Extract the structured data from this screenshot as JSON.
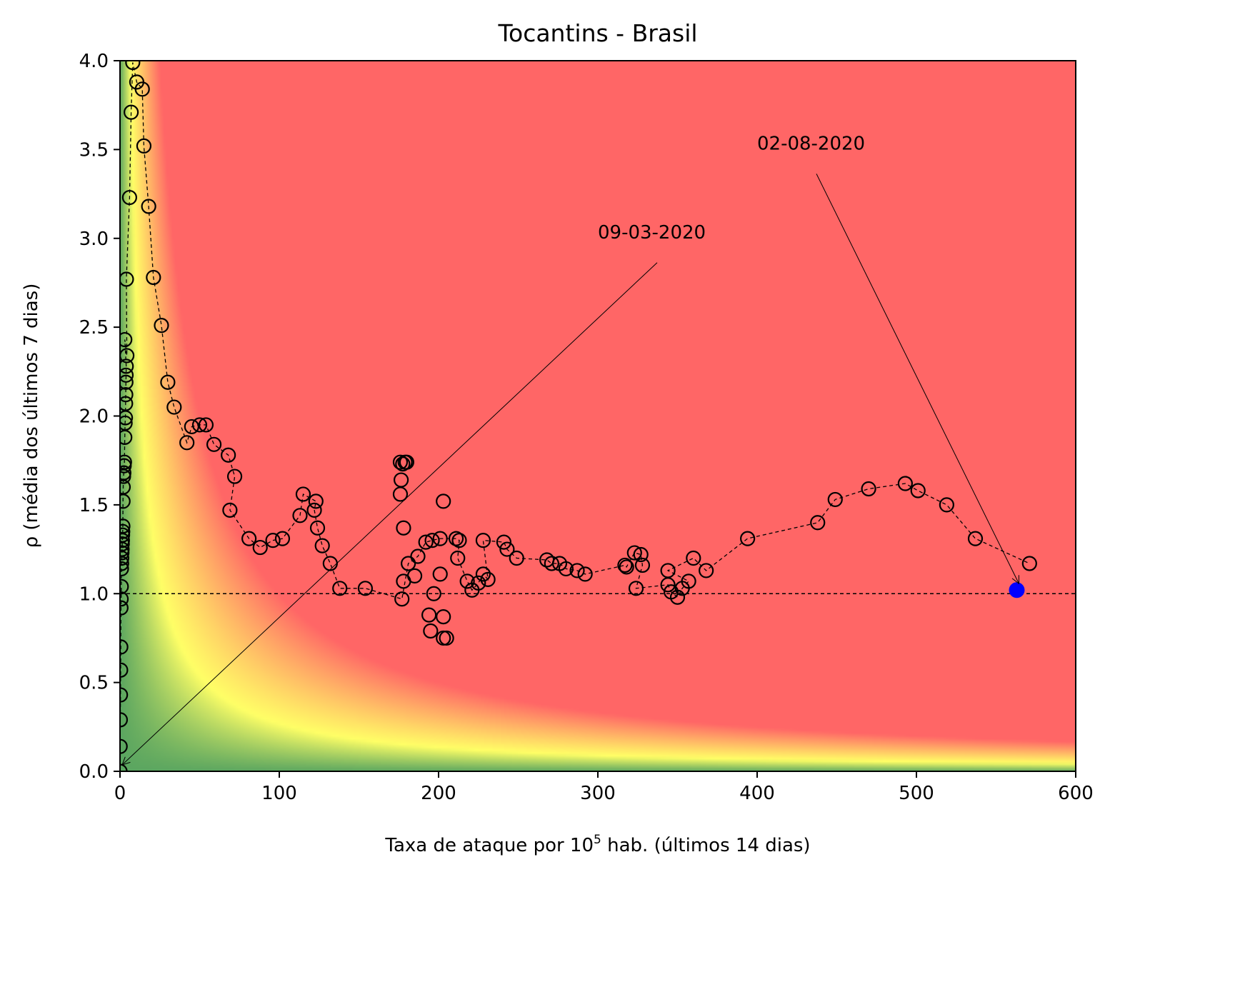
{
  "chart_data": {
    "type": "scatter",
    "title": "Tocantins - Brasil",
    "xlabel_prefix": "Taxa de ataque por 10",
    "xlabel_sup": "5",
    "xlabel_suffix": " hab. (últimos 14 dias)",
    "ylabel": "ρ (média dos últimos 7 dias)",
    "xlim": [
      0,
      600
    ],
    "ylim": [
      0,
      4
    ],
    "xticks": [
      0,
      100,
      200,
      300,
      400,
      500,
      600
    ],
    "xtick_labels": [
      "0",
      "100",
      "200",
      "300",
      "400",
      "500",
      "600"
    ],
    "yticks": [
      0,
      0.5,
      1,
      1.5,
      2,
      2.5,
      3,
      3.5,
      4
    ],
    "ytick_labels": [
      "0.0",
      "0.5",
      "1.0",
      "1.5",
      "2.0",
      "2.5",
      "3.0",
      "3.5",
      "4.0"
    ],
    "grid": false,
    "reference_line": {
      "y": 1.0,
      "style": "dashed",
      "color": "#000000"
    },
    "background_risk_map": {
      "variable": "x*y",
      "low_color": "#5ba660",
      "mid_color": "#ffff66",
      "high_color": "#ff6666",
      "mid_value": 27,
      "high_value": 100
    },
    "series": [
      {
        "marker": "open-circle",
        "line": "dashed",
        "color": "#000000",
        "points": [
          [
            0,
            0.0
          ],
          [
            0.1,
            0.14
          ],
          [
            0.2,
            0.29
          ],
          [
            0.3,
            0.43
          ],
          [
            0.4,
            0.57
          ],
          [
            0.5,
            0.7
          ],
          [
            0.6,
            0.92
          ],
          [
            0.7,
            0.97
          ],
          [
            0.8,
            1.04
          ],
          [
            0.9,
            1.14
          ],
          [
            1.0,
            1.17
          ],
          [
            1.1,
            1.2
          ],
          [
            1.2,
            1.23
          ],
          [
            1.3,
            1.25
          ],
          [
            1.4,
            1.28
          ],
          [
            1.5,
            1.3
          ],
          [
            1.6,
            1.33
          ],
          [
            1.7,
            1.35
          ],
          [
            1.8,
            1.38
          ],
          [
            1.9,
            1.52
          ],
          [
            2.0,
            1.6
          ],
          [
            2.2,
            1.66
          ],
          [
            2.4,
            1.68
          ],
          [
            2.6,
            1.72
          ],
          [
            2.8,
            1.74
          ],
          [
            3.0,
            1.88
          ],
          [
            3.2,
            1.96
          ],
          [
            3.4,
            1.99
          ],
          [
            3.5,
            2.07
          ],
          [
            3.6,
            2.12
          ],
          [
            3.7,
            2.19
          ],
          [
            3.8,
            2.23
          ],
          [
            3.9,
            2.28
          ],
          [
            3.0,
            2.43
          ],
          [
            4.3,
            2.34
          ],
          [
            4.0,
            2.77
          ],
          [
            6.0,
            3.23
          ],
          [
            7.0,
            3.71
          ],
          [
            8.0,
            3.99
          ],
          [
            10.5,
            3.88
          ],
          [
            14.0,
            3.84
          ],
          [
            15.0,
            3.52
          ],
          [
            18.0,
            3.18
          ],
          [
            21.0,
            2.78
          ],
          [
            26.0,
            2.51
          ],
          [
            30.0,
            2.19
          ],
          [
            34.0,
            2.05
          ],
          [
            42.0,
            1.85
          ],
          [
            45.0,
            1.94
          ],
          [
            50.0,
            1.95
          ],
          [
            54.0,
            1.95
          ],
          [
            59.0,
            1.84
          ],
          [
            68.0,
            1.78
          ],
          [
            72.0,
            1.66
          ],
          [
            69.0,
            1.47
          ],
          [
            81.0,
            1.31
          ],
          [
            88.0,
            1.26
          ],
          [
            96.0,
            1.3
          ],
          [
            102.0,
            1.31
          ],
          [
            113.0,
            1.44
          ],
          [
            115.0,
            1.56
          ],
          [
            123.0,
            1.52
          ],
          [
            122.0,
            1.47
          ],
          [
            124.0,
            1.37
          ],
          [
            127.0,
            1.27
          ],
          [
            132.0,
            1.17
          ],
          [
            138.0,
            1.03
          ],
          [
            154.0,
            1.03
          ],
          [
            177.0,
            0.97
          ],
          [
            181.0,
            1.17
          ],
          [
            187.0,
            1.21
          ],
          [
            192.0,
            1.29
          ],
          [
            196.0,
            1.3
          ],
          [
            201.0,
            1.31
          ],
          [
            211.0,
            1.31
          ],
          [
            213.0,
            1.3
          ],
          [
            212.0,
            1.2
          ],
          [
            218.0,
            1.07
          ],
          [
            221.0,
            1.02
          ],
          [
            225.0,
            1.06
          ],
          [
            228.0,
            1.11
          ],
          [
            231.0,
            1.08
          ],
          [
            228.0,
            1.3
          ],
          [
            241.0,
            1.29
          ],
          [
            243.0,
            1.25
          ],
          [
            249.0,
            1.2
          ],
          [
            268.0,
            1.19
          ],
          [
            271.0,
            1.17
          ],
          [
            276.0,
            1.17
          ],
          [
            280.0,
            1.14
          ],
          [
            287.0,
            1.13
          ],
          [
            292.0,
            1.11
          ],
          [
            317.0,
            1.16
          ],
          [
            318.0,
            1.15
          ],
          [
            323.0,
            1.23
          ],
          [
            327.0,
            1.22
          ],
          [
            328.0,
            1.16
          ],
          [
            324.0,
            1.03
          ],
          [
            344.0,
            1.05
          ],
          [
            346.0,
            1.01
          ],
          [
            350.0,
            0.98
          ],
          [
            353.0,
            1.03
          ],
          [
            357.0,
            1.07
          ],
          [
            344.0,
            1.13
          ],
          [
            360.0,
            1.2
          ],
          [
            368.0,
            1.13
          ],
          [
            394.0,
            1.31
          ],
          [
            438.0,
            1.4
          ],
          [
            449.0,
            1.53
          ],
          [
            470.0,
            1.59
          ],
          [
            493.0,
            1.62
          ],
          [
            501.0,
            1.58
          ],
          [
            519.0,
            1.5
          ],
          [
            537.0,
            1.31
          ],
          [
            571.0,
            1.17
          ]
        ],
        "extra_points": [
          [
            176.0,
            1.74
          ],
          [
            177.5,
            1.73
          ],
          [
            179.0,
            1.74
          ],
          [
            180.0,
            1.74
          ],
          [
            176.5,
            1.64
          ],
          [
            176.0,
            1.56
          ],
          [
            178.0,
            1.37
          ],
          [
            203.0,
            1.52
          ],
          [
            178.0,
            1.07
          ],
          [
            185.0,
            1.1
          ],
          [
            201.0,
            1.11
          ],
          [
            197.0,
            1.0
          ],
          [
            194.0,
            0.88
          ],
          [
            203.0,
            0.87
          ],
          [
            195.0,
            0.79
          ],
          [
            203.0,
            0.75
          ],
          [
            205.0,
            0.75
          ]
        ]
      }
    ],
    "highlight_point": {
      "x": 563,
      "y": 1.02,
      "color": "#0000ff"
    },
    "annotations": [
      {
        "text": "09-03-2020",
        "x": 0,
        "y": 0,
        "text_x": 300,
        "text_y": 3.0
      },
      {
        "text": "02-08-2020",
        "x": 563,
        "y": 1.02,
        "text_x": 400,
        "text_y": 3.5
      }
    ]
  }
}
